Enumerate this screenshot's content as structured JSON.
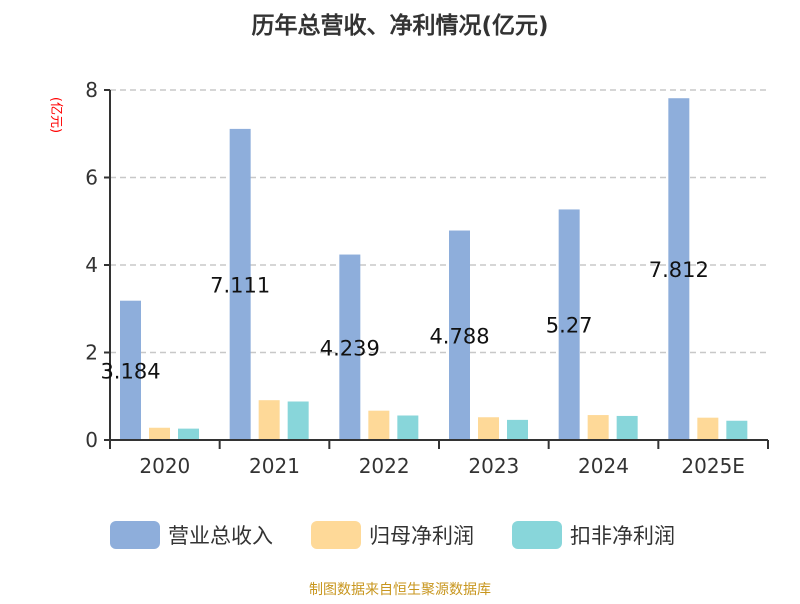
{
  "chart_data": {
    "type": "bar",
    "title": "历年总营收、净利情况(亿元)",
    "ylabel": "(亿元)",
    "xlabel": "",
    "ylim": [
      0,
      8
    ],
    "yticks": [
      "0",
      "2",
      "4",
      "6",
      "8"
    ],
    "grid": true,
    "legend_position": "bottom",
    "categories": [
      "2020",
      "2021",
      "2022",
      "2023",
      "2024",
      "2025E"
    ],
    "series": [
      {
        "name": "营业总收入",
        "color": "#8eaedb",
        "values": [
          3.184,
          7.111,
          4.239,
          4.788,
          5.27,
          7.812
        ],
        "labels": [
          "3.184",
          "7.111",
          "4.239",
          "4.788",
          "5.27",
          "7.812"
        ]
      },
      {
        "name": "归母净利润",
        "color": "#fed998",
        "values": [
          0.28,
          0.91,
          0.67,
          0.52,
          0.57,
          0.51
        ]
      },
      {
        "name": "扣非净利润",
        "color": "#88d6da",
        "values": [
          0.26,
          0.88,
          0.56,
          0.46,
          0.55,
          0.44
        ]
      }
    ],
    "source": "制图数据来自恒生聚源数据库"
  }
}
